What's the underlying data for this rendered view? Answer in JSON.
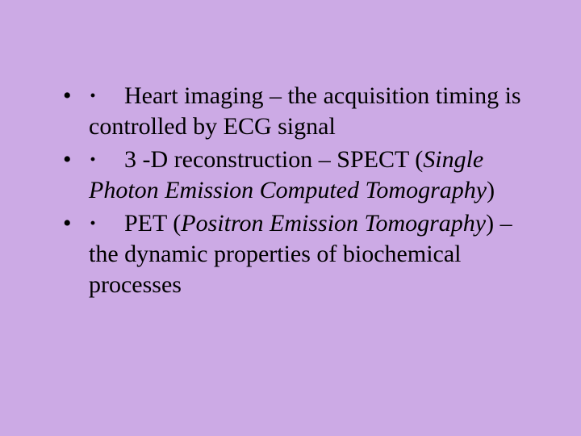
{
  "background_color": "#ccaae5",
  "text_color": "#000000",
  "font_family": "Times New Roman",
  "font_size_pt": 22,
  "slide": {
    "bullets": [
      {
        "pre": "Heart imaging – the acquisition timing is controlled by ECG signal",
        "italic": "",
        "post": ""
      },
      {
        "pre": "3 -D reconstruction – SPECT (",
        "italic": "Single Photon Emission Computed Tomography",
        "post": ")"
      },
      {
        "pre": "PET (",
        "italic": "Positron Emission Tomography",
        "post": ") – the dynamic properties of biochemical processes"
      }
    ]
  }
}
